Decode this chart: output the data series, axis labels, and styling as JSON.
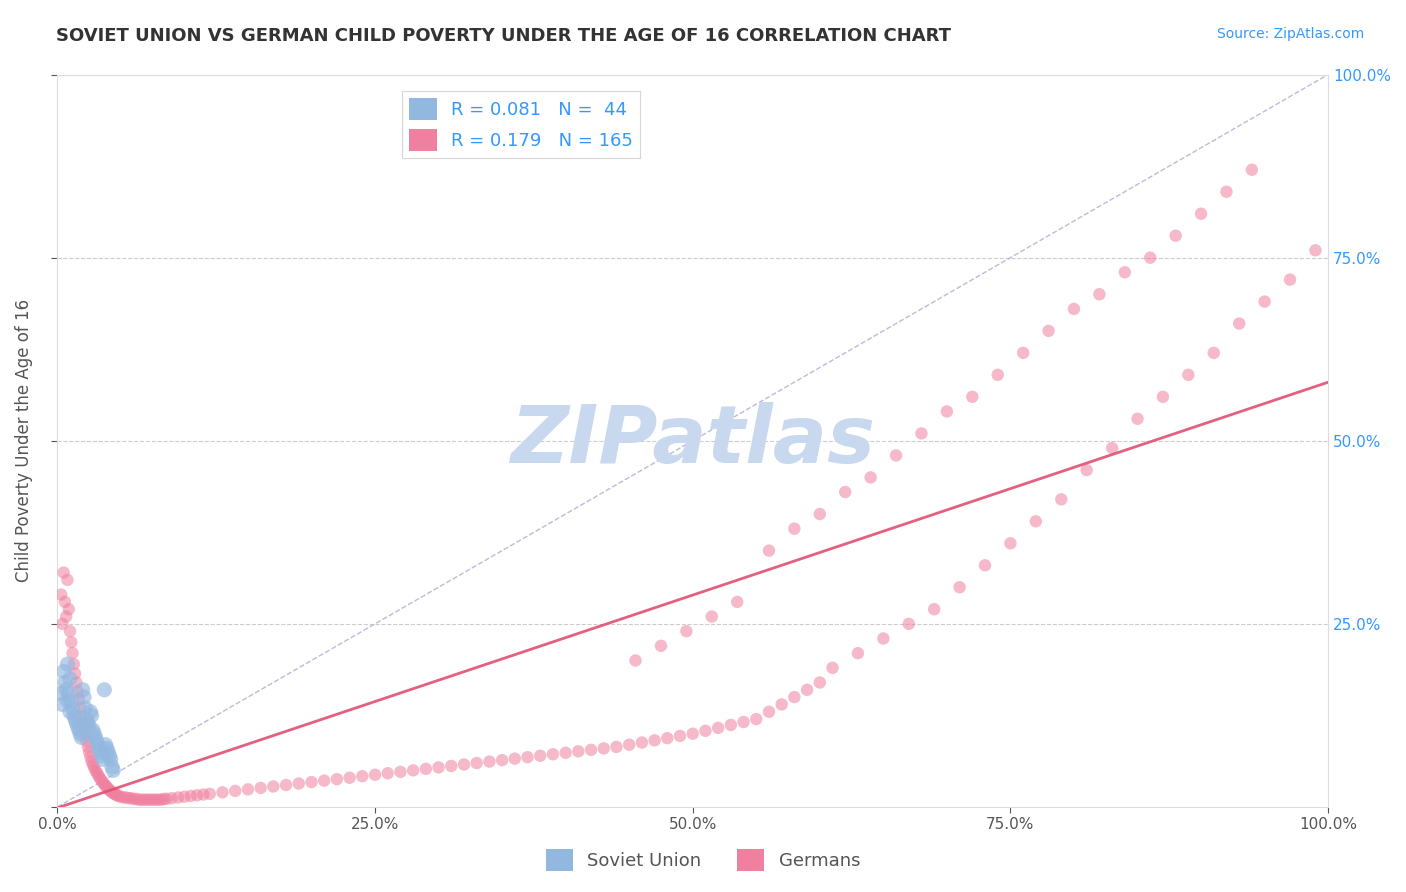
{
  "title": "SOVIET UNION VS GERMAN CHILD POVERTY UNDER THE AGE OF 16 CORRELATION CHART",
  "source_text": "Source: ZipAtlas.com",
  "ylabel": "Child Poverty Under the Age of 16",
  "watermark": "ZIPatlas",
  "legend": [
    {
      "label": "Soviet Union",
      "color": "#93b8e0",
      "R": 0.081,
      "N": 44
    },
    {
      "label": "Germans",
      "color": "#f080a0",
      "R": 0.179,
      "N": 165
    }
  ],
  "soviet_x": [
    0.003,
    0.004,
    0.005,
    0.006,
    0.007,
    0.008,
    0.008,
    0.009,
    0.01,
    0.01,
    0.011,
    0.012,
    0.013,
    0.014,
    0.015,
    0.016,
    0.017,
    0.018,
    0.019,
    0.02,
    0.021,
    0.022,
    0.023,
    0.024,
    0.025,
    0.026,
    0.027,
    0.028,
    0.029,
    0.03,
    0.031,
    0.032,
    0.033,
    0.034,
    0.035,
    0.036,
    0.037,
    0.038,
    0.039,
    0.04,
    0.041,
    0.042,
    0.043,
    0.044
  ],
  "soviet_y": [
    0.155,
    0.14,
    0.185,
    0.17,
    0.16,
    0.195,
    0.145,
    0.155,
    0.175,
    0.13,
    0.145,
    0.135,
    0.125,
    0.12,
    0.115,
    0.11,
    0.105,
    0.1,
    0.095,
    0.16,
    0.15,
    0.135,
    0.12,
    0.115,
    0.11,
    0.13,
    0.125,
    0.105,
    0.1,
    0.095,
    0.09,
    0.085,
    0.08,
    0.075,
    0.07,
    0.065,
    0.16,
    0.085,
    0.08,
    0.075,
    0.07,
    0.065,
    0.055,
    0.05
  ],
  "german_x": [
    0.003,
    0.004,
    0.005,
    0.006,
    0.007,
    0.008,
    0.009,
    0.01,
    0.011,
    0.012,
    0.013,
    0.014,
    0.015,
    0.016,
    0.017,
    0.018,
    0.019,
    0.02,
    0.021,
    0.022,
    0.023,
    0.024,
    0.025,
    0.026,
    0.027,
    0.028,
    0.029,
    0.03,
    0.031,
    0.032,
    0.033,
    0.034,
    0.035,
    0.036,
    0.037,
    0.038,
    0.039,
    0.04,
    0.041,
    0.042,
    0.043,
    0.044,
    0.045,
    0.046,
    0.047,
    0.048,
    0.05,
    0.052,
    0.054,
    0.056,
    0.058,
    0.06,
    0.062,
    0.064,
    0.066,
    0.068,
    0.07,
    0.072,
    0.074,
    0.076,
    0.078,
    0.08,
    0.082,
    0.084,
    0.086,
    0.09,
    0.095,
    0.1,
    0.105,
    0.11,
    0.115,
    0.12,
    0.13,
    0.14,
    0.15,
    0.16,
    0.17,
    0.18,
    0.19,
    0.2,
    0.21,
    0.22,
    0.23,
    0.24,
    0.25,
    0.26,
    0.27,
    0.28,
    0.29,
    0.3,
    0.31,
    0.32,
    0.33,
    0.34,
    0.35,
    0.36,
    0.37,
    0.38,
    0.39,
    0.4,
    0.41,
    0.42,
    0.43,
    0.44,
    0.45,
    0.46,
    0.47,
    0.48,
    0.49,
    0.5,
    0.51,
    0.52,
    0.53,
    0.54,
    0.55,
    0.56,
    0.57,
    0.58,
    0.59,
    0.6,
    0.61,
    0.63,
    0.65,
    0.67,
    0.69,
    0.71,
    0.73,
    0.75,
    0.77,
    0.79,
    0.81,
    0.83,
    0.85,
    0.87,
    0.89,
    0.91,
    0.93,
    0.95,
    0.97,
    0.99,
    0.56,
    0.58,
    0.6,
    0.62,
    0.64,
    0.66,
    0.68,
    0.7,
    0.72,
    0.74,
    0.76,
    0.78,
    0.8,
    0.82,
    0.84,
    0.86,
    0.88,
    0.9,
    0.92,
    0.94,
    0.455,
    0.475,
    0.495,
    0.515,
    0.535
  ],
  "german_y": [
    0.29,
    0.25,
    0.32,
    0.28,
    0.26,
    0.31,
    0.27,
    0.24,
    0.225,
    0.21,
    0.195,
    0.182,
    0.17,
    0.158,
    0.147,
    0.135,
    0.124,
    0.115,
    0.106,
    0.098,
    0.09,
    0.082,
    0.075,
    0.068,
    0.062,
    0.058,
    0.054,
    0.05,
    0.047,
    0.044,
    0.041,
    0.038,
    0.036,
    0.033,
    0.031,
    0.029,
    0.027,
    0.025,
    0.023,
    0.022,
    0.02,
    0.019,
    0.018,
    0.017,
    0.016,
    0.015,
    0.014,
    0.013,
    0.013,
    0.012,
    0.012,
    0.011,
    0.011,
    0.01,
    0.01,
    0.01,
    0.01,
    0.01,
    0.01,
    0.01,
    0.01,
    0.01,
    0.01,
    0.011,
    0.011,
    0.012,
    0.013,
    0.014,
    0.015,
    0.016,
    0.017,
    0.018,
    0.02,
    0.022,
    0.024,
    0.026,
    0.028,
    0.03,
    0.032,
    0.034,
    0.036,
    0.038,
    0.04,
    0.042,
    0.044,
    0.046,
    0.048,
    0.05,
    0.052,
    0.054,
    0.056,
    0.058,
    0.06,
    0.062,
    0.064,
    0.066,
    0.068,
    0.07,
    0.072,
    0.074,
    0.076,
    0.078,
    0.08,
    0.082,
    0.085,
    0.088,
    0.091,
    0.094,
    0.097,
    0.1,
    0.104,
    0.108,
    0.112,
    0.116,
    0.12,
    0.13,
    0.14,
    0.15,
    0.16,
    0.17,
    0.19,
    0.21,
    0.23,
    0.25,
    0.27,
    0.3,
    0.33,
    0.36,
    0.39,
    0.42,
    0.46,
    0.49,
    0.53,
    0.56,
    0.59,
    0.62,
    0.66,
    0.69,
    0.72,
    0.76,
    0.35,
    0.38,
    0.4,
    0.43,
    0.45,
    0.48,
    0.51,
    0.54,
    0.56,
    0.59,
    0.62,
    0.65,
    0.68,
    0.7,
    0.73,
    0.75,
    0.78,
    0.81,
    0.84,
    0.87,
    0.2,
    0.22,
    0.24,
    0.26,
    0.28
  ],
  "bg_color": "#ffffff",
  "grid_color": "#cccccc",
  "diag_line_color": "#aaaacc",
  "soviet_dot_color": "#93b8e0",
  "german_dot_color": "#f080a0",
  "soviet_dot_alpha": 0.65,
  "german_dot_alpha": 0.55,
  "soviet_dot_size": 120,
  "german_dot_size": 80,
  "regression_german_color": "#e05070",
  "xlim": [
    0.0,
    1.0
  ],
  "ylim": [
    0.0,
    1.0
  ],
  "xticks": [
    0.0,
    0.25,
    0.5,
    0.75,
    1.0
  ],
  "yticks": [
    0.0,
    0.25,
    0.5,
    0.75,
    1.0
  ],
  "xticklabels": [
    "0.0%",
    "25.0%",
    "50.0%",
    "75.0%",
    "100.0%"
  ],
  "right_yticklabels": [
    "",
    "25.0%",
    "50.0%",
    "75.0%",
    "100.0%"
  ],
  "left_yticklabels": [
    "",
    "",
    "",
    "",
    ""
  ],
  "title_color": "#333333",
  "label_color": "#555555",
  "tick_color": "#555555",
  "legend_R_color": "#3399ff",
  "watermark_color": "#c8d8ee",
  "watermark_fontsize": 58
}
